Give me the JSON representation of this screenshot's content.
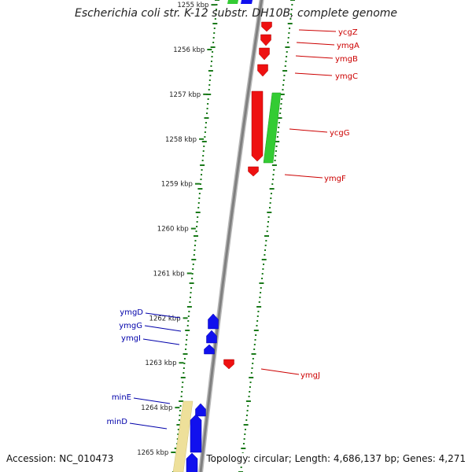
{
  "title": "Escherichia coli str. K-12 substr. DH10B, complete genome",
  "accession_label": "Accession: NC_010473",
  "topology_label": "Topology: circular; Length: 4,686,137 bp; Genes: 4,271",
  "colors": {
    "backbone": "#808080",
    "tick": "#1a7a1a",
    "forward_gene": "#ee1111",
    "reverse_gene": "#1111ee",
    "green_feature": "#33cc33",
    "yellow_feature": "#eee09a",
    "forward_label": "#cc0000",
    "reverse_label": "#0000aa"
  },
  "scale_labels": [
    {
      "text": "1255 kbp",
      "kbp": 1255
    },
    {
      "text": "1256 kbp",
      "kbp": 1256
    },
    {
      "text": "1257 kbp",
      "kbp": 1257
    },
    {
      "text": "1258 kbp",
      "kbp": 1258
    },
    {
      "text": "1259 kbp",
      "kbp": 1259
    },
    {
      "text": "1260 kbp",
      "kbp": 1260
    },
    {
      "text": "1261 kbp",
      "kbp": 1261
    },
    {
      "text": "1262 kbp",
      "kbp": 1262
    },
    {
      "text": "1263 kbp",
      "kbp": 1263
    },
    {
      "text": "1264 kbp",
      "kbp": 1264
    },
    {
      "text": "1265 kbp",
      "kbp": 1265
    }
  ],
  "forward_genes": [
    {
      "name": "ycgZ"
    },
    {
      "name": "ymgA"
    },
    {
      "name": "ymgB"
    },
    {
      "name": "ymgC"
    },
    {
      "name": "ycgG"
    },
    {
      "name": "ymgF"
    },
    {
      "name": "ymgJ"
    }
  ],
  "reverse_genes": [
    {
      "name": "ymgD"
    },
    {
      "name": "ymgG"
    },
    {
      "name": "ymgI"
    },
    {
      "name": "minE"
    },
    {
      "name": "minD"
    }
  ]
}
